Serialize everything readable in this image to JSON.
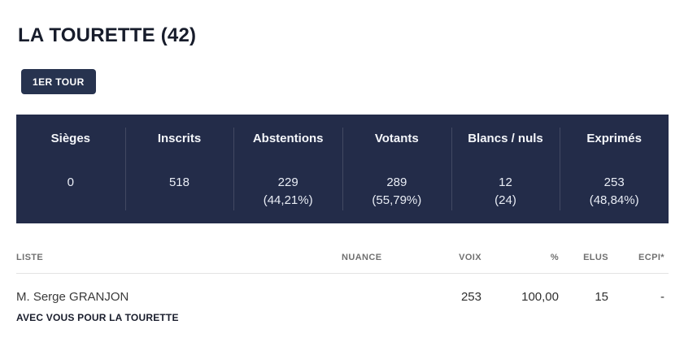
{
  "page": {
    "title": "LA TOURETTE (42)"
  },
  "round_tab": {
    "label": "1ER TOUR"
  },
  "colors": {
    "panel_background": "#232c49",
    "button_background": "#27334f",
    "panel_text": "#ffffff",
    "header_gray": "#707070"
  },
  "summary_table": {
    "columns": [
      {
        "label": "Sièges",
        "value": "0",
        "sub": ""
      },
      {
        "label": "Inscrits",
        "value": "518",
        "sub": ""
      },
      {
        "label": "Abstentions",
        "value": "229",
        "sub": "(44,21%)"
      },
      {
        "label": "Votants",
        "value": "289",
        "sub": "(55,79%)"
      },
      {
        "label": "Blancs / nuls",
        "value": "12",
        "sub": "(24)"
      },
      {
        "label": "Exprimés",
        "value": "253",
        "sub": "(48,84%)"
      }
    ]
  },
  "results_table": {
    "headers": {
      "liste": "LISTE",
      "nuance": "NUANCE",
      "voix": "VOIX",
      "pct": "%",
      "elus": "ELUS",
      "ecpi": "ECPI*"
    },
    "rows": [
      {
        "candidate": "M. Serge GRANJON",
        "list_name": "AVEC VOUS POUR LA TOURETTE",
        "nuance": "",
        "voix": "253",
        "pct": "100,00",
        "elus": "15",
        "ecpi": "-"
      }
    ]
  }
}
